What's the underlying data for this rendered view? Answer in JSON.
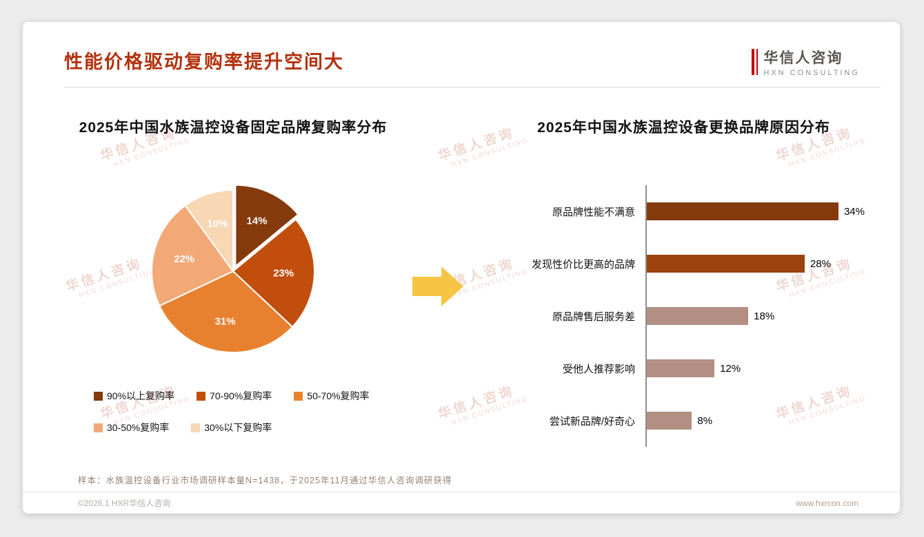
{
  "page": {
    "title": "性能价格驱动复购率提升空间大",
    "logo": {
      "cn": "华信人咨询",
      "en": "HXN CONSULTING"
    },
    "watermark": {
      "line1": "华信人咨询",
      "line2": "HXN CONSULTING"
    },
    "sample_note": "样本：水族温控设备行业市场调研样本量N=1438，于2025年11月通过华信人咨询调研获得",
    "footer": {
      "copyright": "©2026.1 HXR华信人咨询",
      "website": "www.hxrcon.com"
    },
    "accent_color": "#B2320E",
    "arrow_color": "#F7C544"
  },
  "chart_data": [
    {
      "type": "pie",
      "title": "2025年中国水族温控设备固定品牌复购率分布",
      "labels": [
        "90%以上复购率",
        "70-90%复购率",
        "50-70%复购率",
        "30-50%复购率",
        "30%以下复购率"
      ],
      "values": [
        14,
        23,
        31,
        22,
        10
      ],
      "value_suffix": "%",
      "colors": [
        "#843A0D",
        "#C24E0E",
        "#E8812F",
        "#F2A977",
        "#F8D7B4"
      ],
      "start_angle_deg": 0,
      "exploded_slice": 0,
      "legend_position": "bottom"
    },
    {
      "type": "bar",
      "orientation": "horizontal",
      "title": "2025年中国水族温控设备更换品牌原因分布",
      "categories": [
        "原品牌性能不满意",
        "发现性价比更高的品牌",
        "原品牌售后服务差",
        "受他人推荐影响",
        "尝试新品牌/好奇心"
      ],
      "values": [
        34,
        28,
        18,
        12,
        8
      ],
      "value_suffix": "%",
      "colors": [
        "#843A0D",
        "#9A430E",
        "#B38E83",
        "#B38E83",
        "#B38E83"
      ],
      "xlim": [
        0,
        40
      ],
      "grid": false,
      "axis_line": true
    }
  ]
}
